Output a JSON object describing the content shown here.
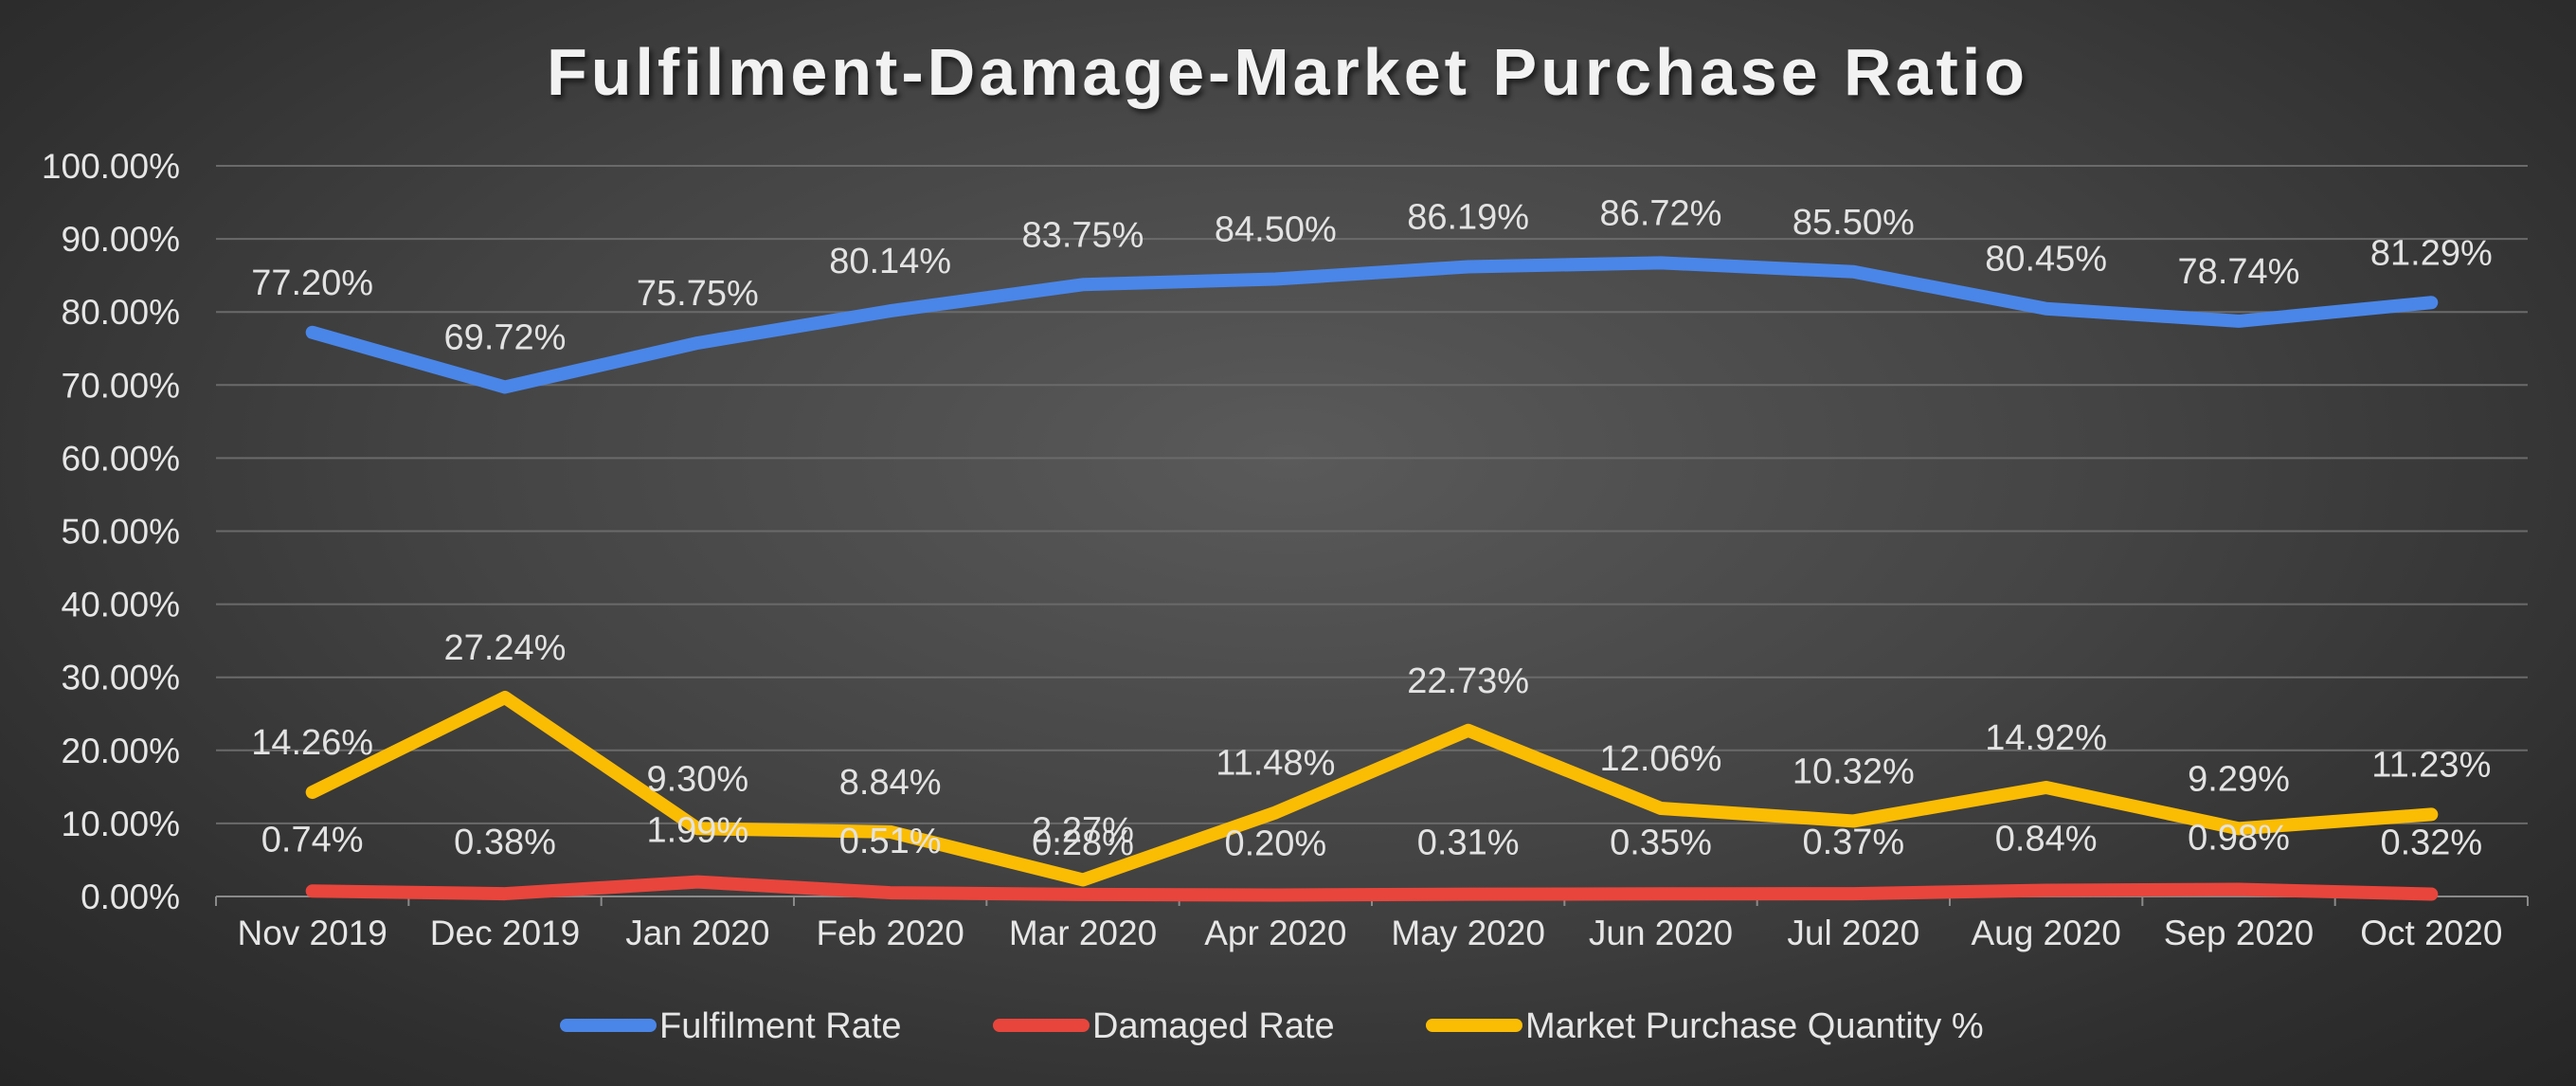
{
  "chart_data": {
    "type": "line",
    "title": "Fulfilment-Damage-Market Purchase Ratio",
    "xlabel": "",
    "ylabel": "",
    "categories": [
      "Nov 2019",
      "Dec 2019",
      "Jan 2020",
      "Feb 2020",
      "Mar 2020",
      "Apr 2020",
      "May 2020",
      "Jun 2020",
      "Jul 2020",
      "Aug 2020",
      "Sep 2020",
      "Oct 2020"
    ],
    "ylim": [
      0,
      100
    ],
    "yticks": [
      "0.00%",
      "10.00%",
      "20.00%",
      "30.00%",
      "40.00%",
      "50.00%",
      "60.00%",
      "70.00%",
      "80.00%",
      "90.00%",
      "100.00%"
    ],
    "grid": true,
    "legend_position": "bottom",
    "series": [
      {
        "name": "Fulfilment Rate",
        "color": "#4a86e8",
        "values": [
          77.2,
          69.72,
          75.75,
          80.14,
          83.75,
          84.5,
          86.19,
          86.72,
          85.5,
          80.45,
          78.74,
          81.29
        ],
        "labels": [
          "77.20%",
          "69.72%",
          "75.75%",
          "80.14%",
          "83.75%",
          "84.50%",
          "86.19%",
          "86.72%",
          "85.50%",
          "80.45%",
          "78.74%",
          "81.29%"
        ]
      },
      {
        "name": "Damaged Rate",
        "color": "#e8453c",
        "values": [
          0.74,
          0.38,
          1.99,
          0.51,
          0.28,
          0.2,
          0.31,
          0.35,
          0.37,
          0.84,
          0.98,
          0.32
        ],
        "labels": [
          "0.74%",
          "0.38%",
          "1.99%",
          "0.51%",
          "0.28%",
          "0.20%",
          "0.31%",
          "0.35%",
          "0.37%",
          "0.84%",
          "0.98%",
          "0.32%"
        ]
      },
      {
        "name": "Market Purchase Quantity %",
        "color": "#fbbc04",
        "values": [
          14.26,
          27.24,
          9.3,
          8.84,
          2.27,
          11.48,
          22.73,
          12.06,
          10.32,
          14.92,
          9.29,
          11.23
        ],
        "labels": [
          "14.26%",
          "27.24%",
          "9.30%",
          "8.84%",
          "2.27%",
          "11.48%",
          "22.73%",
          "12.06%",
          "10.32%",
          "14.92%",
          "9.29%",
          "11.23%"
        ]
      }
    ]
  }
}
